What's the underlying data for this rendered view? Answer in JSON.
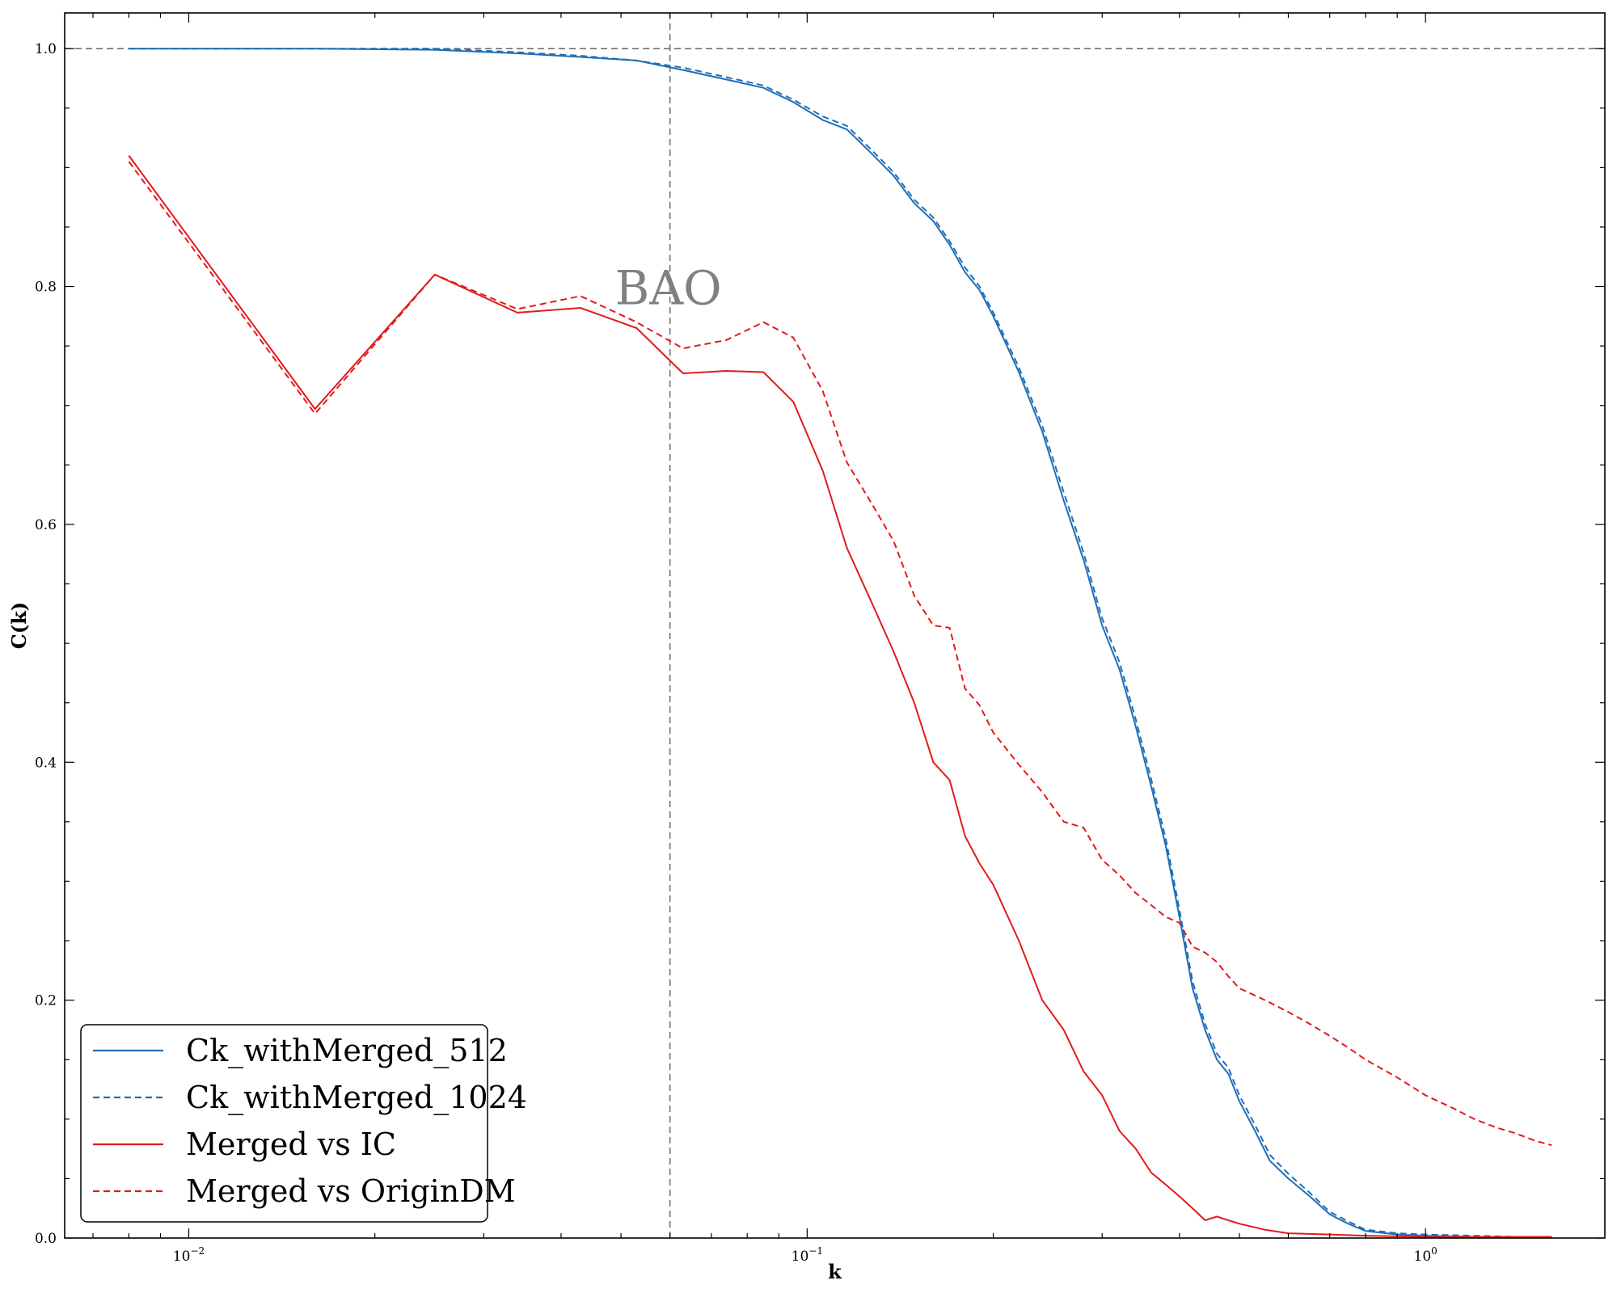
{
  "chart_data": {
    "type": "line",
    "title": "",
    "xlabel": "k",
    "ylabel": "C(k)",
    "xscale": "log",
    "xlim": [
      0.0063,
      1.95
    ],
    "ylim": [
      0.0,
      1.03
    ],
    "x_tick_labels": [
      {
        "value": 0.01,
        "base": "10",
        "exp": "−2"
      },
      {
        "value": 0.1,
        "base": "10",
        "exp": "−1"
      },
      {
        "value": 1.0,
        "base": "10",
        "exp": "0"
      }
    ],
    "y_ticks": [
      0.0,
      0.2,
      0.4,
      0.6,
      0.8,
      1.0
    ],
    "y_tick_labels": [
      "0.0",
      "0.2",
      "0.4",
      "0.6",
      "0.8",
      "1.0"
    ],
    "reference_lines": {
      "horizontal_y": 1.0,
      "vertical_x": 0.06,
      "style": "dashed",
      "color": "#707070"
    },
    "annotation": {
      "text": "BAO",
      "x": 0.06,
      "y": 0.8
    },
    "grid": false,
    "legend_position": "lower-left",
    "series": [
      {
        "name": "Ck_withMerged_512",
        "color": "#1f6fb8",
        "dash": "solid",
        "x": [
          0.008,
          0.016,
          0.025,
          0.034,
          0.043,
          0.053,
          0.063,
          0.074,
          0.085,
          0.095,
          0.106,
          0.116,
          0.127,
          0.138,
          0.149,
          0.16,
          0.17,
          0.18,
          0.19,
          0.2,
          0.22,
          0.24,
          0.26,
          0.28,
          0.3,
          0.32,
          0.34,
          0.36,
          0.38,
          0.4,
          0.42,
          0.44,
          0.46,
          0.48,
          0.5,
          0.53,
          0.56,
          0.6,
          0.65,
          0.7,
          0.75,
          0.8,
          0.9,
          1.0,
          1.2,
          1.4,
          1.6
        ],
        "y": [
          1.0,
          1.0,
          0.999,
          0.996,
          0.993,
          0.99,
          0.982,
          0.974,
          0.967,
          0.955,
          0.94,
          0.932,
          0.912,
          0.893,
          0.87,
          0.855,
          0.835,
          0.812,
          0.797,
          0.775,
          0.728,
          0.678,
          0.62,
          0.57,
          0.515,
          0.478,
          0.43,
          0.38,
          0.33,
          0.27,
          0.21,
          0.175,
          0.15,
          0.138,
          0.115,
          0.09,
          0.065,
          0.05,
          0.035,
          0.02,
          0.012,
          0.006,
          0.003,
          0.002,
          0.001,
          0.001,
          0.001
        ]
      },
      {
        "name": "Ck_withMerged_1024",
        "color": "#1f6fb8",
        "dash": "dashed",
        "x": [
          0.008,
          0.016,
          0.025,
          0.034,
          0.043,
          0.053,
          0.063,
          0.074,
          0.085,
          0.095,
          0.106,
          0.116,
          0.127,
          0.138,
          0.149,
          0.16,
          0.17,
          0.18,
          0.19,
          0.2,
          0.22,
          0.24,
          0.26,
          0.28,
          0.3,
          0.32,
          0.34,
          0.36,
          0.38,
          0.4,
          0.42,
          0.44,
          0.46,
          0.48,
          0.5,
          0.53,
          0.56,
          0.6,
          0.65,
          0.7,
          0.75,
          0.8,
          0.9,
          1.0,
          1.2,
          1.4,
          1.6
        ],
        "y": [
          1.0,
          1.0,
          1.0,
          0.997,
          0.994,
          0.99,
          0.984,
          0.976,
          0.969,
          0.957,
          0.943,
          0.935,
          0.915,
          0.896,
          0.873,
          0.858,
          0.838,
          0.816,
          0.8,
          0.778,
          0.732,
          0.683,
          0.627,
          0.576,
          0.521,
          0.484,
          0.436,
          0.386,
          0.336,
          0.276,
          0.216,
          0.18,
          0.155,
          0.143,
          0.12,
          0.095,
          0.07,
          0.054,
          0.038,
          0.022,
          0.014,
          0.007,
          0.004,
          0.003,
          0.002,
          0.001,
          0.001
        ]
      },
      {
        "name": "Merged vs IC",
        "color": "#e31a1c",
        "dash": "solid",
        "x": [
          0.008,
          0.016,
          0.025,
          0.034,
          0.043,
          0.053,
          0.063,
          0.074,
          0.085,
          0.095,
          0.106,
          0.116,
          0.127,
          0.138,
          0.149,
          0.16,
          0.17,
          0.18,
          0.19,
          0.2,
          0.22,
          0.24,
          0.26,
          0.28,
          0.3,
          0.32,
          0.34,
          0.36,
          0.38,
          0.4,
          0.42,
          0.44,
          0.46,
          0.5,
          0.55,
          0.6,
          0.7,
          0.8,
          1.0,
          1.2,
          1.4,
          1.6
        ],
        "y": [
          0.91,
          0.697,
          0.81,
          0.778,
          0.782,
          0.765,
          0.727,
          0.729,
          0.728,
          0.703,
          0.645,
          0.58,
          0.535,
          0.493,
          0.45,
          0.4,
          0.385,
          0.338,
          0.315,
          0.297,
          0.25,
          0.2,
          0.175,
          0.14,
          0.12,
          0.09,
          0.075,
          0.055,
          0.045,
          0.035,
          0.025,
          0.015,
          0.018,
          0.012,
          0.007,
          0.004,
          0.003,
          0.002,
          0.001,
          0.001,
          0.001,
          0.001
        ]
      },
      {
        "name": "Merged vs OriginDM",
        "color": "#e31a1c",
        "dash": "dashed",
        "x": [
          0.008,
          0.016,
          0.025,
          0.034,
          0.043,
          0.053,
          0.063,
          0.074,
          0.085,
          0.095,
          0.106,
          0.116,
          0.127,
          0.138,
          0.149,
          0.16,
          0.17,
          0.18,
          0.19,
          0.2,
          0.22,
          0.24,
          0.26,
          0.28,
          0.3,
          0.32,
          0.34,
          0.36,
          0.38,
          0.4,
          0.42,
          0.44,
          0.46,
          0.48,
          0.5,
          0.55,
          0.6,
          0.65,
          0.7,
          0.75,
          0.8,
          0.9,
          1.0,
          1.1,
          1.2,
          1.3,
          1.4,
          1.5,
          1.6
        ],
        "y": [
          0.905,
          0.693,
          0.81,
          0.781,
          0.792,
          0.77,
          0.748,
          0.755,
          0.77,
          0.757,
          0.712,
          0.652,
          0.618,
          0.586,
          0.54,
          0.515,
          0.513,
          0.462,
          0.448,
          0.425,
          0.398,
          0.375,
          0.35,
          0.345,
          0.318,
          0.305,
          0.29,
          0.28,
          0.27,
          0.265,
          0.245,
          0.24,
          0.232,
          0.22,
          0.21,
          0.2,
          0.19,
          0.18,
          0.17,
          0.16,
          0.15,
          0.135,
          0.12,
          0.11,
          0.1,
          0.093,
          0.088,
          0.082,
          0.078
        ]
      }
    ]
  }
}
